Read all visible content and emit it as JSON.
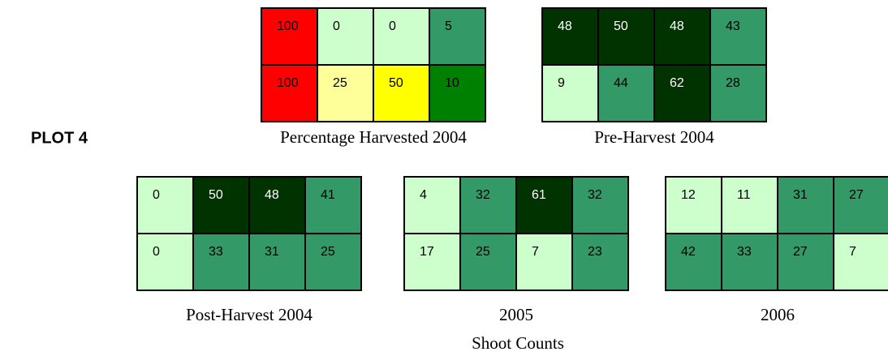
{
  "title": "PLOT 4",
  "footer": "Shoot Counts",
  "grids": [
    {
      "caption": "Percentage Harvested 2004",
      "rows": [
        [
          {
            "value": 100,
            "color": "#ff0000"
          },
          {
            "value": 0,
            "color": "#ccffcc"
          },
          {
            "value": 0,
            "color": "#ccffcc"
          },
          {
            "value": 5,
            "color": "#339966"
          }
        ],
        [
          {
            "value": 100,
            "color": "#ff0000"
          },
          {
            "value": 25,
            "color": "#ffff99"
          },
          {
            "value": 50,
            "color": "#ffff00"
          },
          {
            "value": 10,
            "color": "#008000"
          }
        ]
      ]
    },
    {
      "caption": "Pre-Harvest 2004",
      "rows": [
        [
          {
            "value": 48,
            "color": "#003300"
          },
          {
            "value": 50,
            "color": "#003300"
          },
          {
            "value": 48,
            "color": "#003300"
          },
          {
            "value": 43,
            "color": "#339966"
          }
        ],
        [
          {
            "value": 9,
            "color": "#ccffcc"
          },
          {
            "value": 44,
            "color": "#339966"
          },
          {
            "value": 62,
            "color": "#003300"
          },
          {
            "value": 28,
            "color": "#339966"
          }
        ]
      ]
    },
    {
      "caption": "Post-Harvest 2004",
      "rows": [
        [
          {
            "value": 0,
            "color": "#ccffcc"
          },
          {
            "value": 50,
            "color": "#003300"
          },
          {
            "value": 48,
            "color": "#003300"
          },
          {
            "value": 41,
            "color": "#339966"
          }
        ],
        [
          {
            "value": 0,
            "color": "#ccffcc"
          },
          {
            "value": 33,
            "color": "#339966"
          },
          {
            "value": 31,
            "color": "#339966"
          },
          {
            "value": 25,
            "color": "#339966"
          }
        ]
      ]
    },
    {
      "caption": "2005",
      "rows": [
        [
          {
            "value": 4,
            "color": "#ccffcc"
          },
          {
            "value": 32,
            "color": "#339966"
          },
          {
            "value": 61,
            "color": "#003300"
          },
          {
            "value": 32,
            "color": "#339966"
          }
        ],
        [
          {
            "value": 17,
            "color": "#ccffcc"
          },
          {
            "value": 25,
            "color": "#339966"
          },
          {
            "value": 7,
            "color": "#ccffcc"
          },
          {
            "value": 23,
            "color": "#339966"
          }
        ]
      ]
    },
    {
      "caption": "2006",
      "rows": [
        [
          {
            "value": 12,
            "color": "#ccffcc"
          },
          {
            "value": 11,
            "color": "#ccffcc"
          },
          {
            "value": 31,
            "color": "#339966"
          },
          {
            "value": 27,
            "color": "#339966"
          }
        ],
        [
          {
            "value": 42,
            "color": "#339966"
          },
          {
            "value": 33,
            "color": "#339966"
          },
          {
            "value": 27,
            "color": "#339966"
          },
          {
            "value": 7,
            "color": "#ccffcc"
          }
        ]
      ]
    }
  ]
}
